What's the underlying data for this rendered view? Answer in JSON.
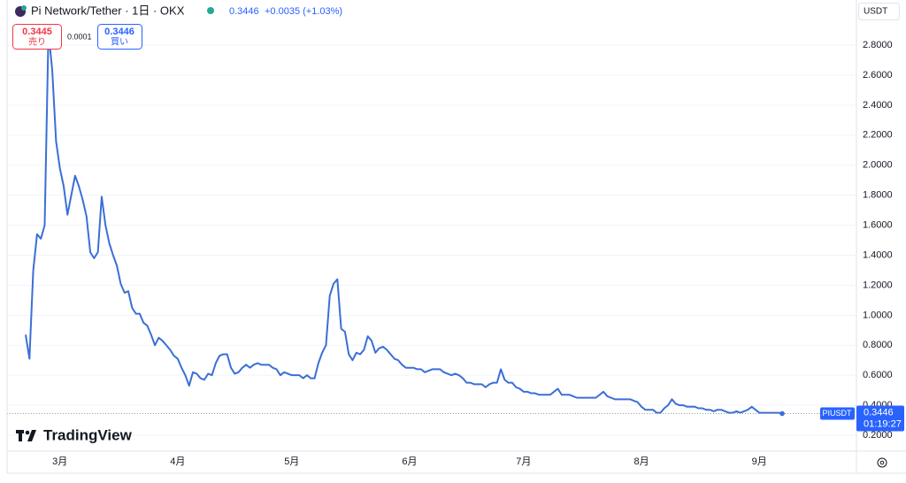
{
  "header": {
    "title": "Pi Network/Tether · 1日 · OKX",
    "price": "0.3446",
    "change": "+0.0035 (+1.03%)",
    "currency": "USDT"
  },
  "trade": {
    "sell_price": "0.3445",
    "sell_label": "売り",
    "spread": "0.0001",
    "buy_price": "0.3446",
    "buy_label": "買い"
  },
  "price_tag": {
    "symbol": "PIUSDT",
    "price": "0.3446",
    "countdown": "01:19:27"
  },
  "logo": "TradingView",
  "chart_data": {
    "type": "line",
    "color": "#3b6fd6",
    "grid": true,
    "categories": [
      null,
      null,
      null,
      null,
      null,
      null,
      null,
      null,
      null,
      "3月",
      null,
      null,
      null,
      null,
      null,
      null,
      null,
      null,
      null,
      null,
      null,
      null,
      null,
      null,
      null,
      null,
      null,
      null,
      null,
      null,
      null,
      null,
      null,
      null,
      null,
      null,
      null,
      null,
      null,
      null,
      "4月",
      null,
      null,
      null,
      null,
      null,
      null,
      null,
      null,
      null,
      null,
      null,
      null,
      null,
      null,
      null,
      null,
      null,
      null,
      null,
      null,
      null,
      null,
      null,
      null,
      null,
      null,
      null,
      null,
      null,
      "5月",
      null,
      null,
      null,
      null,
      null,
      null,
      null,
      null,
      null,
      null,
      null,
      null,
      null,
      null,
      null,
      null,
      null,
      null,
      null,
      null,
      null,
      null,
      null,
      null,
      null,
      null,
      null,
      null,
      null,
      null,
      "6月",
      null,
      null,
      null,
      null,
      null,
      null,
      null,
      null,
      null,
      null,
      null,
      null,
      null,
      null,
      null,
      null,
      null,
      null,
      null,
      null,
      null,
      null,
      null,
      null,
      null,
      null,
      null,
      null,
      null,
      "7月",
      null,
      null,
      null,
      null,
      null,
      null,
      null,
      null,
      null,
      null,
      null,
      null,
      null,
      null,
      null,
      null,
      null,
      null,
      null,
      null,
      null,
      null,
      null,
      null,
      null,
      null,
      null,
      null,
      null,
      null,
      "8月",
      null,
      null,
      null,
      null,
      null,
      null,
      null,
      null,
      null,
      null,
      null,
      null,
      null,
      null,
      null,
      null,
      null,
      null,
      null,
      null,
      null,
      null,
      null,
      null,
      null,
      null,
      null,
      null,
      null,
      null,
      "9月",
      null,
      null,
      null,
      null,
      null,
      null
    ],
    "values": [
      0.87,
      0.71,
      1.3,
      1.54,
      1.51,
      1.6,
      2.89,
      2.63,
      2.16,
      1.98,
      1.86,
      1.67,
      1.8,
      1.93,
      1.86,
      1.77,
      1.66,
      1.42,
      1.38,
      1.42,
      1.79,
      1.6,
      1.48,
      1.4,
      1.33,
      1.21,
      1.15,
      1.16,
      1.05,
      1.01,
      1.01,
      0.95,
      0.93,
      0.87,
      0.8,
      0.85,
      0.83,
      0.8,
      0.77,
      0.73,
      0.71,
      0.65,
      0.6,
      0.53,
      0.62,
      0.61,
      0.58,
      0.57,
      0.61,
      0.6,
      0.68,
      0.73,
      0.74,
      0.74,
      0.65,
      0.61,
      0.62,
      0.65,
      0.67,
      0.65,
      0.67,
      0.68,
      0.67,
      0.67,
      0.67,
      0.65,
      0.64,
      0.6,
      0.62,
      0.61,
      0.6,
      0.6,
      0.6,
      0.58,
      0.6,
      0.58,
      0.58,
      0.68,
      0.75,
      0.8,
      1.13,
      1.21,
      1.24,
      0.91,
      0.89,
      0.74,
      0.7,
      0.75,
      0.74,
      0.77,
      0.86,
      0.83,
      0.75,
      0.78,
      0.79,
      0.77,
      0.74,
      0.71,
      0.7,
      0.67,
      0.65,
      0.65,
      0.65,
      0.64,
      0.64,
      0.62,
      0.63,
      0.64,
      0.64,
      0.64,
      0.62,
      0.61,
      0.6,
      0.61,
      0.6,
      0.58,
      0.55,
      0.55,
      0.54,
      0.54,
      0.54,
      0.52,
      0.54,
      0.55,
      0.55,
      0.64,
      0.57,
      0.55,
      0.55,
      0.52,
      0.51,
      0.49,
      0.49,
      0.48,
      0.48,
      0.47,
      0.47,
      0.47,
      0.47,
      0.49,
      0.51,
      0.47,
      0.47,
      0.47,
      0.46,
      0.45,
      0.45,
      0.45,
      0.45,
      0.45,
      0.45,
      0.47,
      0.49,
      0.46,
      0.45,
      0.44,
      0.44,
      0.44,
      0.44,
      0.44,
      0.43,
      0.42,
      0.39,
      0.37,
      0.37,
      0.37,
      0.35,
      0.35,
      0.38,
      0.4,
      0.44,
      0.41,
      0.4,
      0.4,
      0.39,
      0.39,
      0.39,
      0.38,
      0.38,
      0.37,
      0.37,
      0.36,
      0.37,
      0.37,
      0.36,
      0.35,
      0.35,
      0.36,
      0.35,
      0.36,
      0.37,
      0.39,
      0.37,
      0.35,
      0.35,
      0.35,
      0.35,
      0.35,
      0.35,
      0.3446
    ],
    "ylim": [
      0.094,
      3.054
    ],
    "yticks": [
      {
        "value": 0.2,
        "label": "0.2000"
      },
      {
        "value": 0.4,
        "label": "0.4000"
      },
      {
        "value": 0.6,
        "label": "0.6000"
      },
      {
        "value": 0.8,
        "label": "0.8000"
      },
      {
        "value": 1.0,
        "label": "1.0000"
      },
      {
        "value": 1.2,
        "label": "1.2000"
      },
      {
        "value": 1.4,
        "label": "1.4000"
      },
      {
        "value": 1.6,
        "label": "1.6000"
      },
      {
        "value": 1.8,
        "label": "1.8000"
      },
      {
        "value": 2.0,
        "label": "2.0000"
      },
      {
        "value": 2.2,
        "label": "2.2000"
      },
      {
        "value": 2.4,
        "label": "2.4000"
      },
      {
        "value": 2.6,
        "label": "2.6000"
      },
      {
        "value": 2.8,
        "label": "2.8000"
      }
    ]
  }
}
